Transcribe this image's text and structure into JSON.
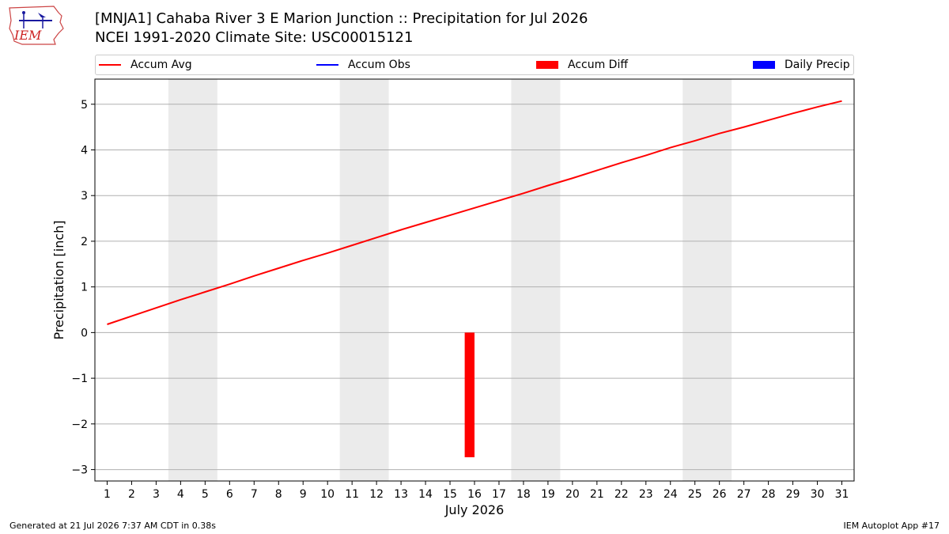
{
  "header": {
    "title": "[MNJA1] Cahaba River 3 E Marion Junction :: Precipitation for Jul 2026",
    "subtitle": "NCEI 1991-2020 Climate Site: USC00015121"
  },
  "logo": {
    "text": "IEM",
    "icon": "iem-logo-icon"
  },
  "footer": {
    "generated": "Generated at 21 Jul 2026 7:37 AM CDT in 0.38s",
    "app": "IEM Autoplot App #17"
  },
  "chart_data": {
    "type": "line",
    "title": "[MNJA1] Cahaba River 3 E Marion Junction :: Precipitation for Jul 2026",
    "subtitle": "NCEI 1991-2020 Climate Site: USC00015121",
    "xlabel": "July 2026",
    "ylabel": "Precipitation [inch]",
    "xlim": [
      0.5,
      31.5
    ],
    "ylim": [
      -3.25,
      5.55
    ],
    "x_ticks": [
      1,
      2,
      3,
      4,
      5,
      6,
      7,
      8,
      9,
      10,
      11,
      12,
      13,
      14,
      15,
      16,
      17,
      18,
      19,
      20,
      21,
      22,
      23,
      24,
      25,
      26,
      27,
      28,
      29,
      30,
      31
    ],
    "y_ticks": [
      -3,
      -2,
      -1,
      0,
      1,
      2,
      3,
      4,
      5
    ],
    "y_tick_labels": [
      "−3",
      "−2",
      "−1",
      "0",
      "1",
      "2",
      "3",
      "4",
      "5"
    ],
    "grid": "horizontal",
    "legend_position": "top",
    "weekend_shading": [
      [
        3.5,
        5.5
      ],
      [
        10.5,
        12.5
      ],
      [
        17.5,
        19.5
      ],
      [
        24.5,
        26.5
      ]
    ],
    "legend": [
      {
        "label": "Accum Avg",
        "kind": "line",
        "color": "#ff0000"
      },
      {
        "label": "Accum Obs",
        "kind": "line",
        "color": "#0000ff"
      },
      {
        "label": "Accum Diff",
        "kind": "patch",
        "color": "#ff0000"
      },
      {
        "label": "Daily Precip",
        "kind": "patch",
        "color": "#0000ff"
      }
    ],
    "series": [
      {
        "name": "Accum Avg",
        "type": "line",
        "color": "#ff0000",
        "x": [
          1,
          2,
          3,
          4,
          5,
          6,
          7,
          8,
          9,
          10,
          11,
          12,
          13,
          14,
          15,
          16,
          17,
          18,
          19,
          20,
          21,
          22,
          23,
          24,
          25,
          26,
          27,
          28,
          29,
          30,
          31
        ],
        "values": [
          0.18,
          0.36,
          0.54,
          0.72,
          0.89,
          1.06,
          1.24,
          1.41,
          1.58,
          1.74,
          1.91,
          2.08,
          2.25,
          2.41,
          2.57,
          2.73,
          2.89,
          3.05,
          3.22,
          3.38,
          3.55,
          3.72,
          3.88,
          4.05,
          4.2,
          4.36,
          4.5,
          4.65,
          4.8,
          4.94,
          5.07
        ]
      },
      {
        "name": "Accum Diff",
        "type": "bar",
        "color": "#ff0000",
        "x": [
          15.8
        ],
        "values": [
          -2.73
        ],
        "bar_width": 0.4
      }
    ]
  }
}
